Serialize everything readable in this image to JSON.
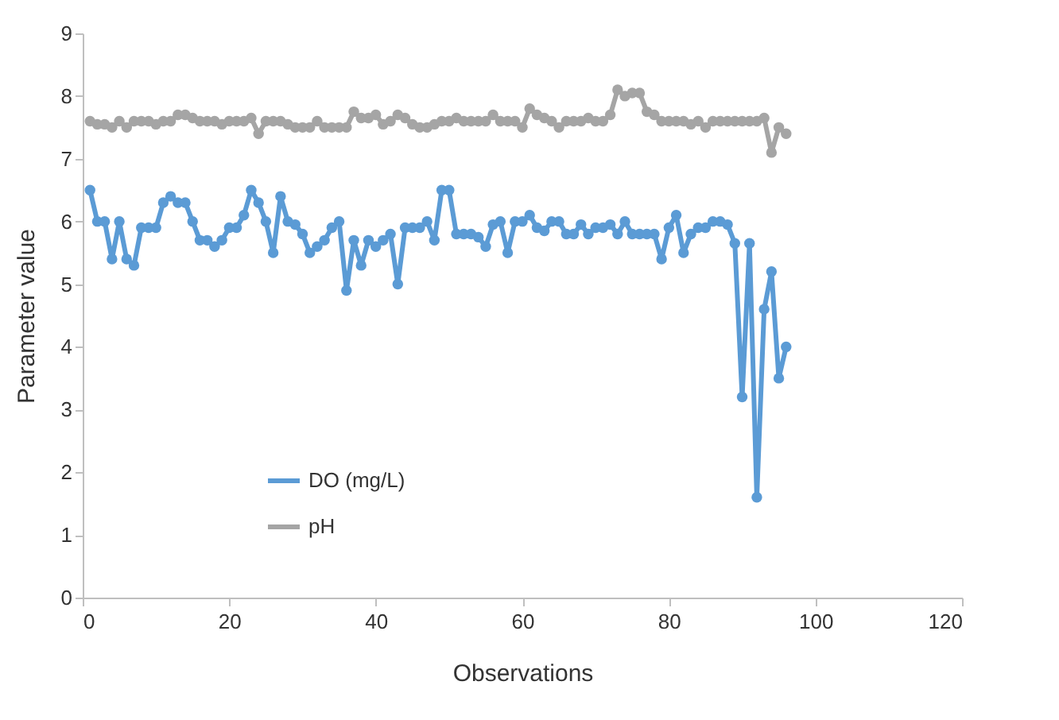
{
  "chart_data": {
    "type": "line",
    "xlabel": "Observations",
    "ylabel": "Parameter value",
    "x": [
      1,
      2,
      3,
      4,
      5,
      6,
      7,
      8,
      9,
      10,
      11,
      12,
      13,
      14,
      15,
      16,
      17,
      18,
      19,
      20,
      21,
      22,
      23,
      24,
      25,
      26,
      27,
      28,
      29,
      30,
      31,
      32,
      33,
      34,
      35,
      36,
      37,
      38,
      39,
      40,
      41,
      42,
      43,
      44,
      45,
      46,
      47,
      48,
      49,
      50,
      51,
      52,
      53,
      54,
      55,
      56,
      57,
      58,
      59,
      60,
      61,
      62,
      63,
      64,
      65,
      66,
      67,
      68,
      69,
      70,
      71,
      72,
      73,
      74,
      75,
      76,
      77,
      78,
      79,
      80,
      81,
      82,
      83,
      84,
      85,
      86,
      87,
      88,
      89,
      90,
      91,
      92,
      93,
      94,
      95,
      96
    ],
    "series": [
      {
        "name": "DO (mg/L)",
        "color": "#5b9bd5",
        "values": [
          6.5,
          6.0,
          6.0,
          5.4,
          6.0,
          5.4,
          5.3,
          5.9,
          5.9,
          5.9,
          6.3,
          6.4,
          6.3,
          6.3,
          6.0,
          5.7,
          5.7,
          5.6,
          5.7,
          5.9,
          5.9,
          6.1,
          6.5,
          6.3,
          6.0,
          5.5,
          6.4,
          6.0,
          5.95,
          5.8,
          5.5,
          5.6,
          5.7,
          5.9,
          6.0,
          4.9,
          5.7,
          5.3,
          5.7,
          5.6,
          5.7,
          5.8,
          5.0,
          5.9,
          5.9,
          5.9,
          6.0,
          5.7,
          6.5,
          6.5,
          5.8,
          5.8,
          5.8,
          5.75,
          5.6,
          5.95,
          6.0,
          5.5,
          6.0,
          6.0,
          6.1,
          5.9,
          5.85,
          6.0,
          6.0,
          5.8,
          5.8,
          5.95,
          5.8,
          5.9,
          5.9,
          5.95,
          5.8,
          6.0,
          5.8,
          5.8,
          5.8,
          5.8,
          5.4,
          5.9,
          6.1,
          5.5,
          5.8,
          5.9,
          5.9,
          6.0,
          6.0,
          5.95,
          5.65,
          3.2,
          5.65,
          1.6,
          4.6,
          5.2,
          3.5,
          4.0
        ]
      },
      {
        "name": "pH",
        "color": "#a5a5a5",
        "values": [
          7.6,
          7.55,
          7.55,
          7.5,
          7.6,
          7.5,
          7.6,
          7.6,
          7.6,
          7.55,
          7.6,
          7.6,
          7.7,
          7.7,
          7.65,
          7.6,
          7.6,
          7.6,
          7.55,
          7.6,
          7.6,
          7.6,
          7.65,
          7.4,
          7.6,
          7.6,
          7.6,
          7.55,
          7.5,
          7.5,
          7.5,
          7.6,
          7.5,
          7.5,
          7.5,
          7.5,
          7.75,
          7.65,
          7.65,
          7.7,
          7.55,
          7.6,
          7.7,
          7.65,
          7.55,
          7.5,
          7.5,
          7.55,
          7.6,
          7.6,
          7.65,
          7.6,
          7.6,
          7.6,
          7.6,
          7.7,
          7.6,
          7.6,
          7.6,
          7.5,
          7.8,
          7.7,
          7.65,
          7.6,
          7.5,
          7.6,
          7.6,
          7.6,
          7.65,
          7.6,
          7.6,
          7.7,
          8.1,
          8.0,
          8.05,
          8.05,
          7.75,
          7.7,
          7.6,
          7.6,
          7.6,
          7.6,
          7.55,
          7.6,
          7.5,
          7.6,
          7.6,
          7.6,
          7.6,
          7.6,
          7.6,
          7.6,
          7.65,
          7.1,
          7.5,
          7.4
        ]
      }
    ],
    "xlim": [
      0,
      120
    ],
    "xticks": [
      0,
      20,
      40,
      60,
      80,
      100,
      120
    ],
    "ylim": [
      0,
      9
    ],
    "yticks": [
      0,
      1,
      2,
      3,
      4,
      5,
      6,
      7,
      8,
      9
    ],
    "grid": false,
    "legend": "bottom left",
    "marker": "circle",
    "line_style": "solid"
  }
}
